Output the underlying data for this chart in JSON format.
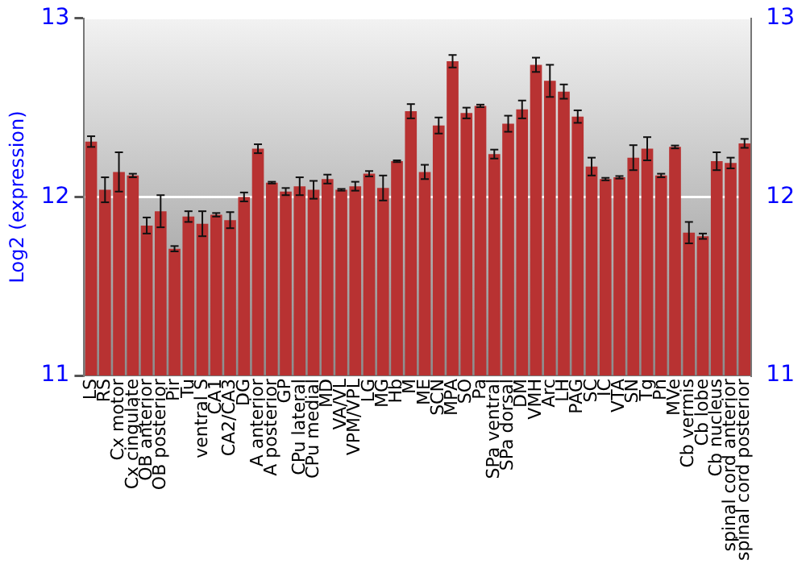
{
  "chart_data": {
    "type": "bar",
    "ylabel": "Log2 (expression)",
    "categories": [
      "LS",
      "RS",
      "Cx motor",
      "Cx cingulate",
      "OB anterior",
      "OB posterior",
      "Pir",
      "Tu",
      "ventral S",
      "CA1",
      "CA2/CA3",
      "DG",
      "A anterior",
      "A posterior",
      "GP",
      "CPu lateral",
      "CPu medial",
      "MD",
      "VA/VL",
      "VPM/VPL",
      "LG",
      "MG",
      "Hb",
      "M",
      "ME",
      "SCN",
      "MPA",
      "SO",
      "Pa",
      "SPa ventral",
      "SPa dorsal",
      "DM",
      "VMH",
      "Arc",
      "LH",
      "PAG",
      "SC",
      "IC",
      "VTA",
      "SN",
      "Tg",
      "Pn",
      "MVe",
      "Cb vermis",
      "Cb lobe",
      "Cb nucleus",
      "spinal cord anterior",
      "spinal cord posterior"
    ],
    "values": [
      12.31,
      12.04,
      12.14,
      12.12,
      11.84,
      11.92,
      11.71,
      11.89,
      11.85,
      11.9,
      11.87,
      12.0,
      12.27,
      12.08,
      12.03,
      12.06,
      12.04,
      12.1,
      12.04,
      12.06,
      12.13,
      12.05,
      12.2,
      12.48,
      12.14,
      12.4,
      12.76,
      12.47,
      12.51,
      12.24,
      12.41,
      12.49,
      12.74,
      12.65,
      12.59,
      12.45,
      12.17,
      12.1,
      12.11,
      12.22,
      12.27,
      12.12,
      12.28,
      11.8,
      11.78,
      12.2,
      12.19,
      12.3
    ],
    "errors": [
      0.03,
      0.07,
      0.11,
      0.01,
      0.045,
      0.09,
      0.015,
      0.03,
      0.07,
      0.01,
      0.045,
      0.025,
      0.025,
      0.005,
      0.02,
      0.05,
      0.05,
      0.025,
      0.005,
      0.025,
      0.015,
      0.07,
      0.005,
      0.04,
      0.04,
      0.045,
      0.035,
      0.03,
      0.007,
      0.025,
      0.045,
      0.05,
      0.04,
      0.09,
      0.04,
      0.035,
      0.05,
      0.007,
      0.007,
      0.07,
      0.065,
      0.01,
      0.008,
      0.06,
      0.015,
      0.05,
      0.03,
      0.025
    ],
    "color": "#b83232",
    "ylim": [
      11,
      13
    ],
    "yticks": [
      11,
      12,
      13
    ],
    "y2lim": [
      11,
      13
    ],
    "y2ticks": [
      11,
      12,
      13
    ],
    "grid": "y",
    "legend": false
  }
}
